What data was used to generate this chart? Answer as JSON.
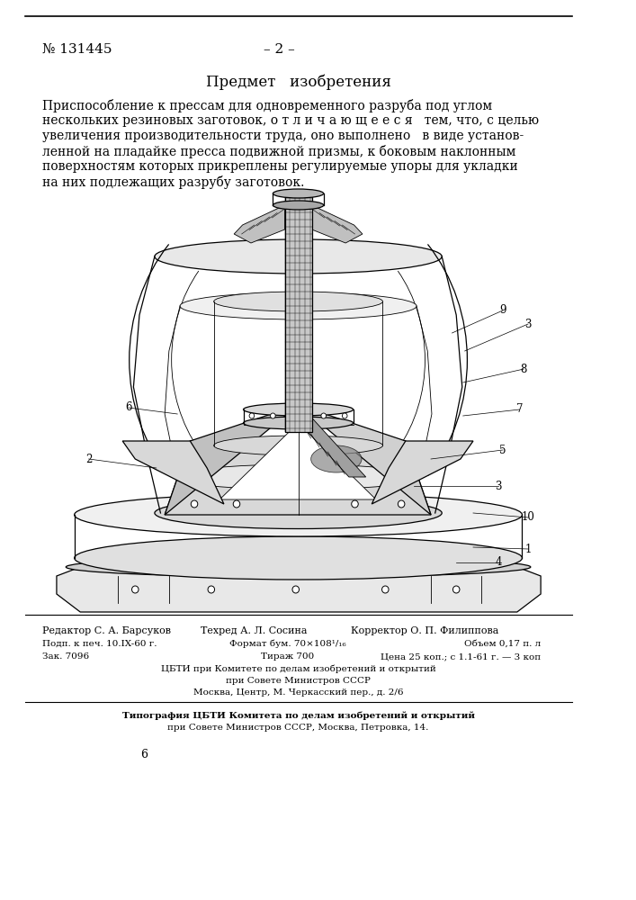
{
  "page_width": 7.07,
  "page_height": 10.0,
  "background_color": "#ffffff",
  "header_patent_no": "№ 131445",
  "header_page_no": "– 2 –",
  "header_font_size": 11,
  "title": "Предмет   изобретения",
  "title_font_size": 12,
  "body_lines": [
    "Приспособление к прессам для одновременного разруба под углом",
    "нескольких резиновых заготовок, о т л и ч а ю щ е е с я   тем, что, с целью",
    "увеличения производительности труда, оно выполнено   в виде установ-",
    "ленной на пладайке пресса подвижной призмы, к боковым наклонным",
    "поверхностям которых прикреплены регулируемые упоры для укладки",
    "на них подлежащих разрубу заготовок."
  ],
  "body_font_size": 10,
  "footer_line1_editor": "Редактор С. А. Барсуков",
  "footer_line1_tech": "Техред А. Л. Сосина",
  "footer_line1_corrector": "Корректор О. П. Филиппова",
  "footer_line2a": "Подп. к печ. 10.IX-60 г.",
  "footer_line2b": "Формат бум. 70×108¹/₁₆",
  "footer_line2c": "Объем 0,17 п. л",
  "footer_line3a": "Зак. 7096",
  "footer_line3b": "Тираж 700",
  "footer_line3c": "Цена 25 коп.; с 1.1-61 г. — 3 коп",
  "footer_line4": "ЦБТИ при Комитете по делам изобретений и открытий",
  "footer_line5": "при Совете Министров СССР",
  "footer_line6": "Москва, Центр, М. Черкасский пер., д. 2/6",
  "footer_line7": "Типография ЦБТИ Комитета по делам изобретений и открытий",
  "footer_line8": "при Совете Министров СССР, Москва, Петровка, 14.",
  "page_number": "6",
  "footer_font_size": 8,
  "footer_small_font_size": 7.5
}
